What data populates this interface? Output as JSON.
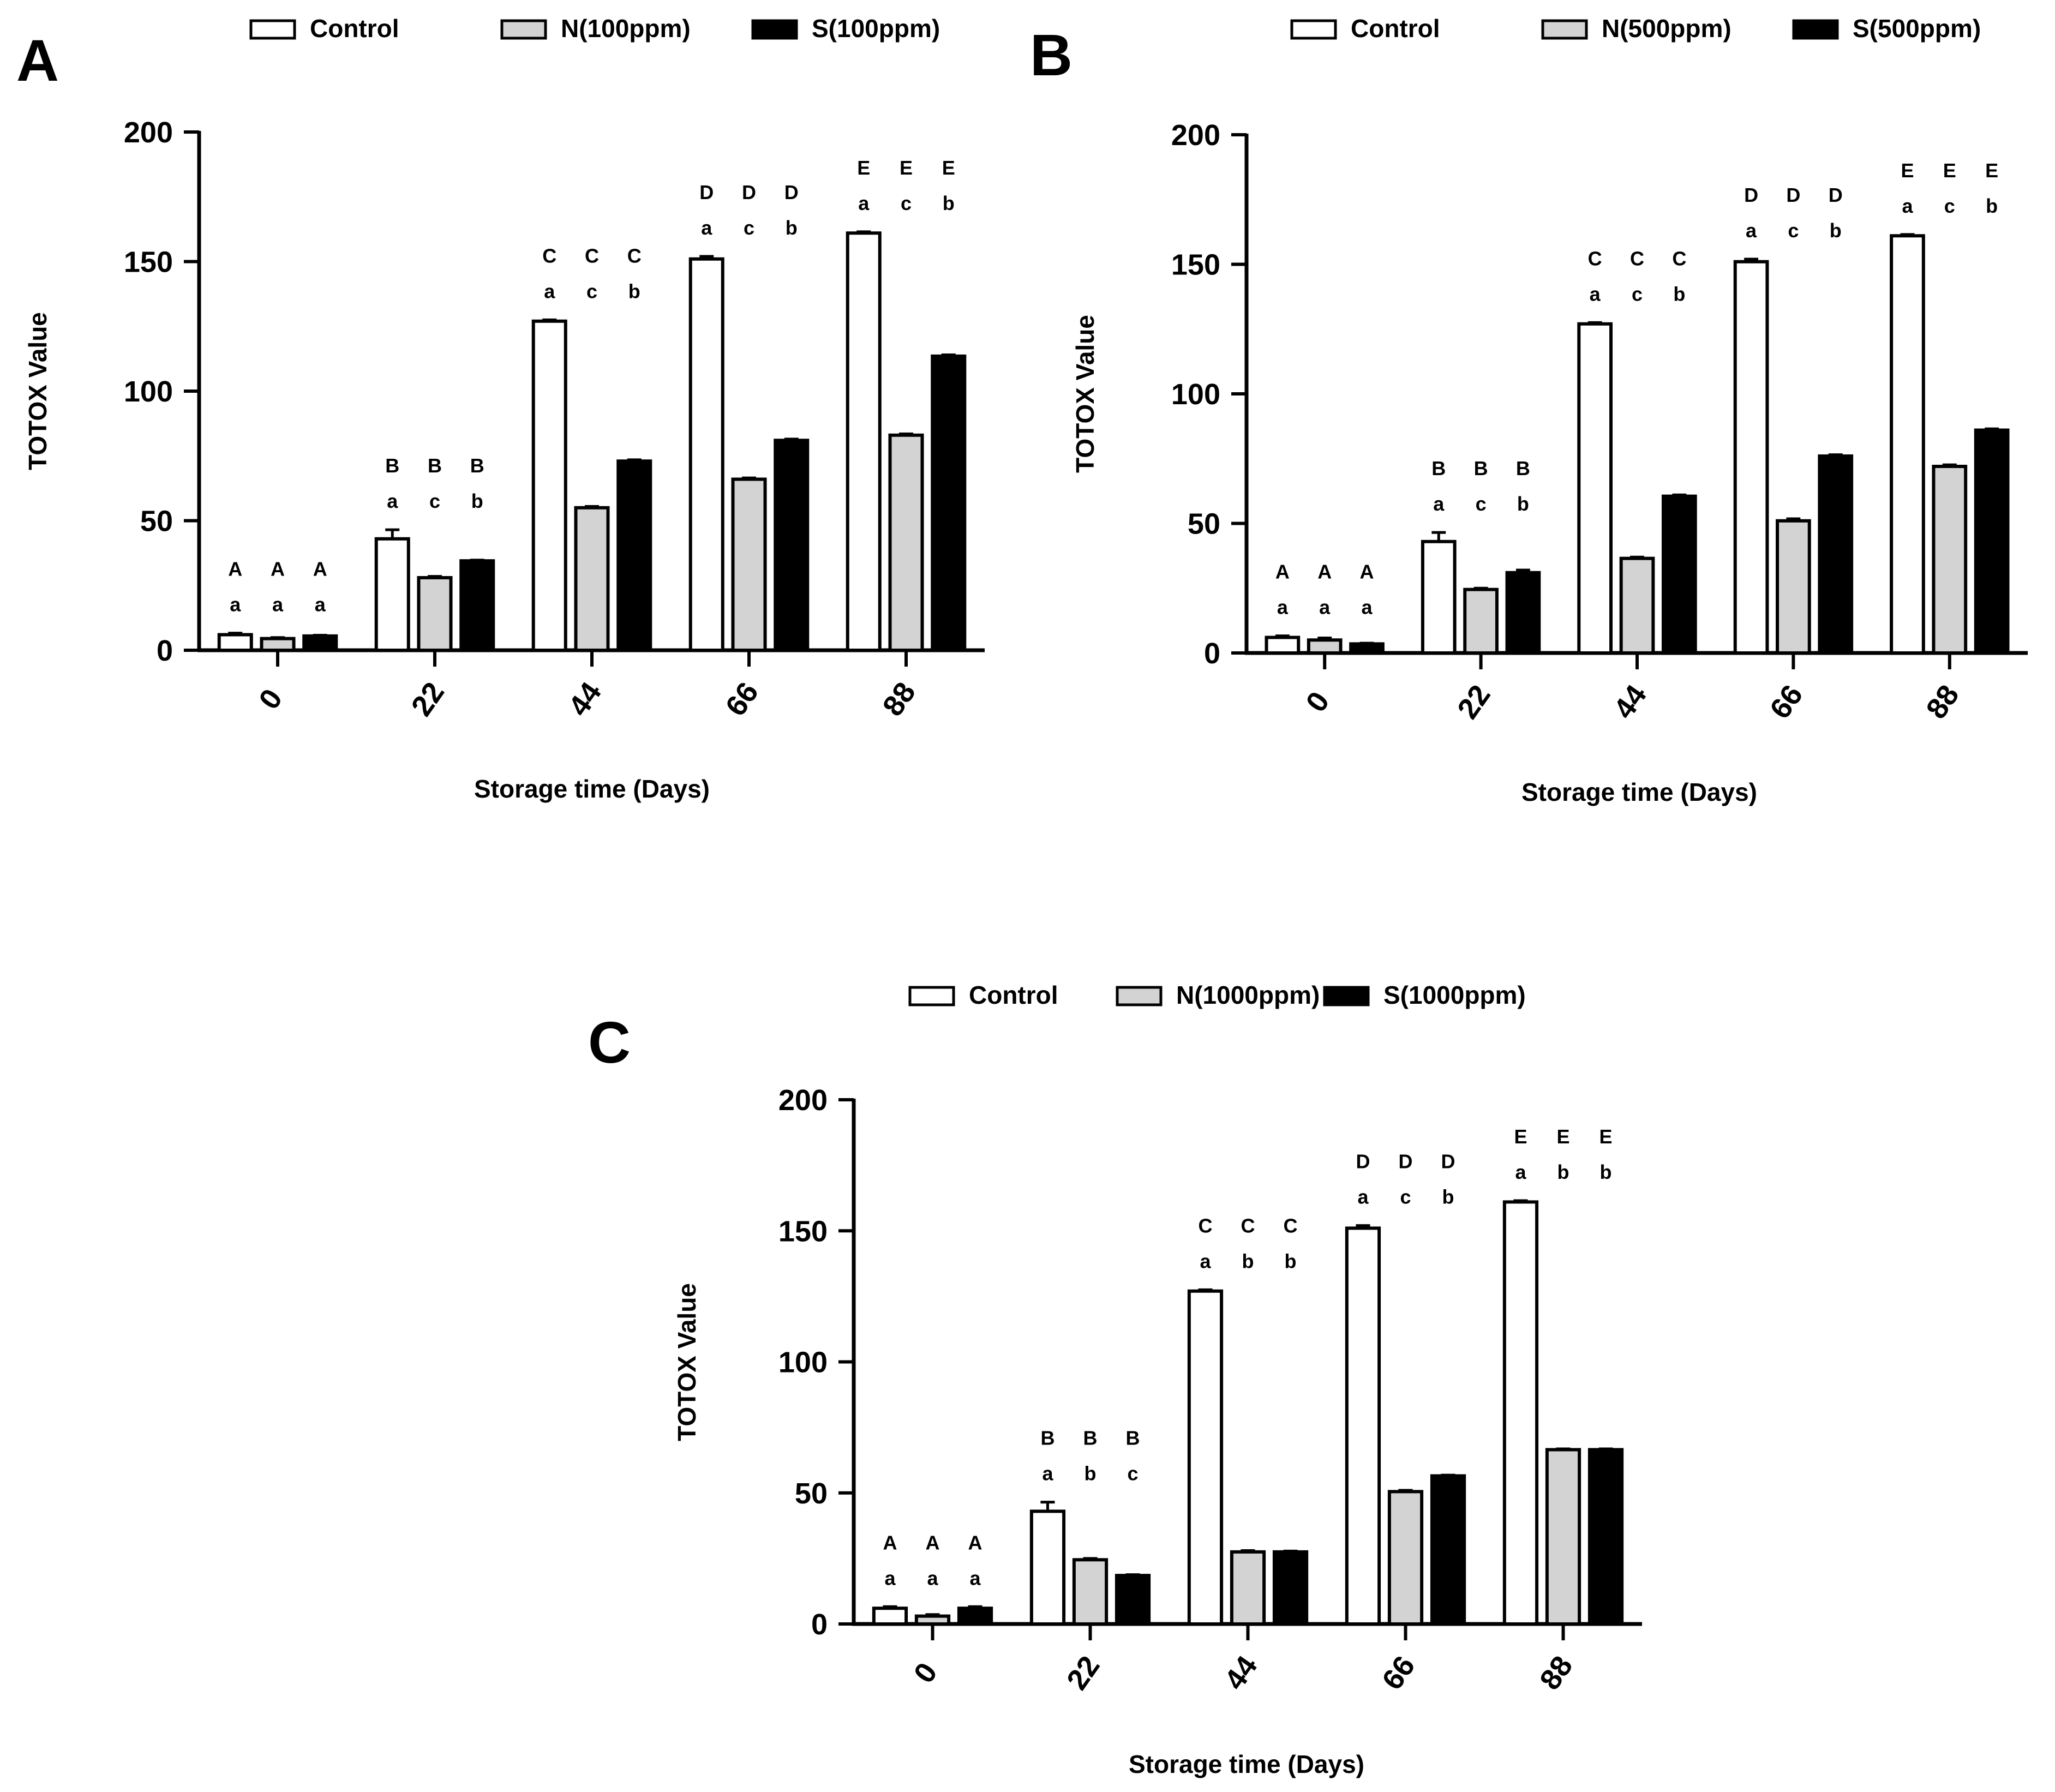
{
  "chart_data": [
    {
      "panel": "A",
      "type": "bar",
      "xlabel": "Storage time (Days)",
      "ylabel": "TOTOX Value",
      "ylim": [
        0,
        200
      ],
      "yticks": [
        0,
        50,
        100,
        150,
        200
      ],
      "categories": [
        "0",
        "22",
        "44",
        "66",
        "88"
      ],
      "legend_position": "top",
      "series": [
        {
          "name": "Control",
          "color": "#ffffff",
          "values": [
            6,
            43,
            127,
            151,
            161
          ],
          "errors": [
            0.6,
            3.5,
            0.5,
            1.0,
            0.5
          ],
          "group_letters": [
            "A",
            "B",
            "C",
            "D",
            "E"
          ],
          "treatment_letters": [
            "a",
            "a",
            "a",
            "a",
            "a"
          ]
        },
        {
          "name": "N(100ppm)",
          "color": "#d3d3d3",
          "values": [
            4.5,
            28,
            55,
            66,
            83
          ],
          "errors": [
            0.4,
            0.5,
            0.5,
            0.5,
            0.5
          ],
          "group_letters": [
            "A",
            "B",
            "C",
            "D",
            "E"
          ],
          "treatment_letters": [
            "a",
            "c",
            "c",
            "c",
            "c"
          ]
        },
        {
          "name": "S(100ppm)",
          "color": "#000000",
          "values": [
            5.5,
            34.5,
            73,
            81,
            113.5
          ],
          "errors": [
            0.3,
            0.3,
            0.5,
            0.5,
            0.5
          ],
          "group_letters": [
            "A",
            "B",
            "C",
            "D",
            "E"
          ],
          "treatment_letters": [
            "a",
            "b",
            "b",
            "b",
            "b"
          ]
        }
      ]
    },
    {
      "panel": "B",
      "type": "bar",
      "xlabel": "Storage time (Days)",
      "ylabel": "TOTOX Value",
      "ylim": [
        0,
        200
      ],
      "yticks": [
        0,
        50,
        100,
        150,
        200
      ],
      "categories": [
        "0",
        "22",
        "44",
        "66",
        "88"
      ],
      "legend_position": "top",
      "series": [
        {
          "name": "Control",
          "color": "#ffffff",
          "values": [
            6,
            43,
            127,
            151,
            161
          ],
          "errors": [
            0.6,
            3.5,
            0.5,
            1.0,
            0.5
          ],
          "group_letters": [
            "A",
            "B",
            "C",
            "D",
            "E"
          ],
          "treatment_letters": [
            "a",
            "a",
            "a",
            "a",
            "a"
          ]
        },
        {
          "name": "N(500ppm)",
          "color": "#d3d3d3",
          "values": [
            5,
            24.5,
            36.5,
            51,
            72
          ],
          "errors": [
            0.8,
            0.5,
            0.5,
            0.8,
            0.6
          ],
          "group_letters": [
            "A",
            "B",
            "C",
            "D",
            "E"
          ],
          "treatment_letters": [
            "a",
            "c",
            "c",
            "c",
            "c"
          ]
        },
        {
          "name": "S(500ppm)",
          "color": "#000000",
          "values": [
            3.5,
            31,
            60.5,
            76,
            86
          ],
          "errors": [
            0.3,
            1.0,
            0.5,
            0.5,
            0.5
          ],
          "group_letters": [
            "A",
            "B",
            "C",
            "D",
            "E"
          ],
          "treatment_letters": [
            "a",
            "b",
            "b",
            "b",
            "b"
          ]
        }
      ]
    },
    {
      "panel": "C",
      "type": "bar",
      "xlabel": "Storage time (Days)",
      "ylabel": "TOTOX Value",
      "ylim": [
        0,
        200
      ],
      "yticks": [
        0,
        50,
        100,
        150,
        200
      ],
      "categories": [
        "0",
        "22",
        "44",
        "66",
        "88"
      ],
      "legend_position": "top",
      "series": [
        {
          "name": "Control",
          "color": "#ffffff",
          "values": [
            6,
            43,
            127,
            151,
            161
          ],
          "errors": [
            0.6,
            3.5,
            0.5,
            1.0,
            0.5
          ],
          "group_letters": [
            "A",
            "B",
            "C",
            "D",
            "E"
          ],
          "treatment_letters": [
            "a",
            "a",
            "a",
            "a",
            "a"
          ]
        },
        {
          "name": "N(1000ppm)",
          "color": "#d3d3d3",
          "values": [
            3,
            24.5,
            27.5,
            50.5,
            66.5
          ],
          "errors": [
            0.6,
            0.5,
            0.5,
            0.5,
            0.3
          ],
          "group_letters": [
            "A",
            "B",
            "C",
            "D",
            "E"
          ],
          "treatment_letters": [
            "a",
            "b",
            "b",
            "c",
            "b"
          ]
        },
        {
          "name": "S(1000ppm)",
          "color": "#000000",
          "values": [
            6,
            18.5,
            27.5,
            56.5,
            66.5
          ],
          "errors": [
            0.6,
            0.3,
            0.3,
            0.3,
            0.3
          ],
          "group_letters": [
            "A",
            "B",
            "C",
            "D",
            "E"
          ],
          "treatment_letters": [
            "a",
            "c",
            "b",
            "b",
            "b"
          ]
        }
      ]
    }
  ]
}
